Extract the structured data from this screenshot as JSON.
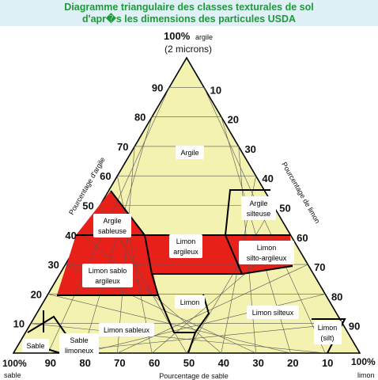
{
  "header": {
    "line1": "Diagramme triangulaire des classes texturales de sol",
    "line2": "d'apr�s les dimensions des particules USDA"
  },
  "corners": {
    "top_a": "100%",
    "top_b": "argile",
    "top_c": "(2 microns)",
    "left_a": "100%",
    "left_b": "sable",
    "right_a": "100%",
    "right_b": "limon"
  },
  "axes": {
    "left": "Pourcentage d'argile",
    "right": "Pourcentage de limon",
    "bottom": "Pourcentage de sable"
  },
  "ticks": {
    "clay": [
      "10",
      "20",
      "30",
      "40",
      "50",
      "60",
      "70",
      "80",
      "90"
    ],
    "silt": [
      "10",
      "20",
      "30",
      "40",
      "50",
      "60",
      "70",
      "80",
      "90"
    ],
    "sand": [
      "90",
      "80",
      "70",
      "60",
      "50",
      "40",
      "30",
      "20",
      "10"
    ]
  },
  "classes": {
    "argile": "Argile",
    "argile_silteuse_1": "Argile",
    "argile_silteuse_2": "silteuse",
    "argile_sableuse_1": "Argile",
    "argile_sableuse_2": "sableuse",
    "limon_argileux_1": "Limon",
    "limon_argileux_2": "argileux",
    "limon_silto_argileux_1": "Limon",
    "limon_silto_argileux_2": "silto-argileux",
    "limon_sablo_argileux_1": "Limon sablo",
    "limon_sablo_argileux_2": "argileux",
    "limon": "Limon",
    "limon_silteux": "Limon silteux",
    "limon_sableux": "Limon sableux",
    "sable": "Sable",
    "sable_limoneux_1": "Sable",
    "sable_limoneux_2": "limoneux",
    "limon_silt_1": "Limon",
    "limon_silt_2": "(silt)"
  },
  "colors": {
    "triangle_fill": "#f4f2b0",
    "highlight": "#e8201a",
    "title": "#1f9a3a",
    "title_bg": "#dff0f6"
  }
}
